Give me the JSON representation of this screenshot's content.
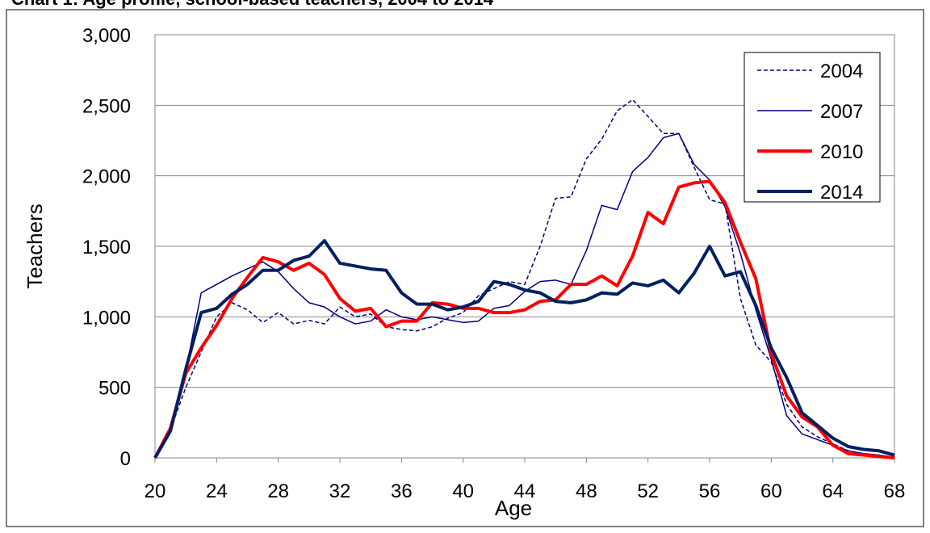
{
  "chart_data": {
    "type": "line",
    "title": "Chart 1: Age profile, school-based teachers, 2004 to 2014",
    "x_label": "Age",
    "y_label": "Teachers",
    "x": [
      20,
      21,
      22,
      23,
      24,
      25,
      26,
      27,
      28,
      29,
      30,
      31,
      32,
      33,
      34,
      35,
      36,
      37,
      38,
      39,
      40,
      41,
      42,
      43,
      44,
      45,
      46,
      47,
      48,
      49,
      50,
      51,
      52,
      53,
      54,
      55,
      56,
      57,
      58,
      59,
      60,
      61,
      62,
      63,
      64,
      65,
      66,
      67,
      68
    ],
    "xlim": [
      20,
      68
    ],
    "xticks": [
      20,
      24,
      28,
      32,
      36,
      40,
      44,
      48,
      52,
      56,
      60,
      64,
      68
    ],
    "ylim": [
      0,
      3000
    ],
    "yticks": [
      0,
      500,
      {
        "value": 1000,
        "label": "1,000"
      },
      {
        "value": 1500,
        "label": "1,500"
      },
      {
        "value": 2000,
        "label": "2,000"
      },
      {
        "value": 2500,
        "label": "2,500"
      },
      {
        "value": 3000,
        "label": "3,000"
      }
    ],
    "grid": true,
    "legend": "upper right",
    "series": [
      {
        "name": "2004",
        "color": "#000080",
        "dashed": true,
        "width": 1.5,
        "values": [
          0,
          200,
          500,
          750,
          1000,
          1100,
          1050,
          960,
          1030,
          950,
          975,
          950,
          1070,
          1000,
          1020,
          930,
          910,
          900,
          930,
          990,
          1030,
          1150,
          1200,
          1250,
          1230,
          1500,
          1840,
          1850,
          2120,
          2260,
          2460,
          2540,
          2420,
          2300,
          2300,
          2060,
          1830,
          1800,
          1130,
          800,
          680,
          380,
          220,
          150,
          100,
          50,
          30,
          20,
          5
        ]
      },
      {
        "name": "2007",
        "color": "#000080",
        "dashed": false,
        "width": 1.5,
        "values": [
          0,
          200,
          620,
          1170,
          1230,
          1290,
          1340,
          1390,
          1320,
          1200,
          1100,
          1070,
          1000,
          950,
          970,
          1050,
          1000,
          980,
          1000,
          980,
          960,
          970,
          1060,
          1080,
          1180,
          1250,
          1260,
          1230,
          1470,
          1790,
          1760,
          2030,
          2130,
          2270,
          2300,
          2080,
          1970,
          1780,
          1450,
          1050,
          700,
          300,
          170,
          130,
          90,
          50,
          30,
          20,
          5
        ]
      },
      {
        "name": "2010",
        "color": "#ff0000",
        "dashed": false,
        "width": 4,
        "values": [
          0,
          210,
          600,
          780,
          940,
          1130,
          1280,
          1420,
          1390,
          1330,
          1380,
          1300,
          1130,
          1040,
          1060,
          930,
          970,
          970,
          1100,
          1090,
          1060,
          1060,
          1030,
          1030,
          1050,
          1110,
          1120,
          1230,
          1230,
          1290,
          1220,
          1430,
          1740,
          1660,
          1920,
          1950,
          1960,
          1810,
          1530,
          1270,
          740,
          440,
          290,
          220,
          90,
          30,
          20,
          10,
          0
        ]
      },
      {
        "name": "2014",
        "color": "#002060",
        "dashed": false,
        "width": 4,
        "values": [
          0,
          190,
          630,
          1030,
          1060,
          1160,
          1230,
          1330,
          1330,
          1400,
          1430,
          1540,
          1380,
          1360,
          1340,
          1330,
          1170,
          1090,
          1090,
          1050,
          1070,
          1110,
          1250,
          1230,
          1190,
          1170,
          1110,
          1100,
          1120,
          1170,
          1160,
          1240,
          1220,
          1260,
          1170,
          1310,
          1500,
          1290,
          1320,
          1080,
          780,
          570,
          320,
          230,
          140,
          80,
          60,
          50,
          20
        ]
      }
    ]
  }
}
